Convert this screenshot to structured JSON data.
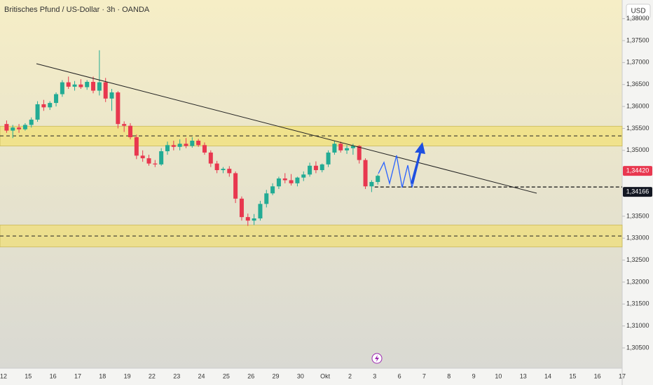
{
  "chart_data": {
    "type": "candlestick",
    "title": "Britisches Pfund / US-Dollar · 3h · OANDA",
    "currency": "USD",
    "up_color": "#22ab94",
    "down_color": "#e8374f",
    "categories": [
      "12",
      null,
      null,
      null,
      "15",
      null,
      null,
      null,
      "16",
      null,
      null,
      null,
      "17",
      null,
      null,
      null,
      "18",
      null,
      null,
      null,
      "19",
      null,
      null,
      null,
      "22",
      null,
      null,
      null,
      "23",
      null,
      null,
      null,
      "24",
      null,
      null,
      null,
      "25",
      null,
      null,
      null,
      "26",
      null,
      null,
      null,
      "29",
      null,
      null,
      null,
      "30",
      null,
      null,
      null,
      "Okt",
      null,
      null,
      null,
      "2",
      null,
      null,
      null,
      "3",
      null,
      null,
      null,
      "6",
      null,
      null,
      null,
      "7",
      null,
      null,
      null,
      "8",
      null,
      null,
      null,
      "9",
      null,
      null,
      null,
      "10",
      null,
      null,
      null,
      "13",
      null,
      null,
      null,
      "14",
      null,
      null,
      null,
      "15",
      null,
      null,
      null,
      "16",
      null,
      null,
      null,
      "17",
      null,
      null,
      null
    ],
    "open": [
      1.356,
      1.3545,
      1.3552,
      1.3548,
      1.3558,
      1.357,
      1.3605,
      1.3598,
      1.3608,
      1.3628,
      1.3655,
      1.3645,
      1.365,
      1.3644,
      1.3656,
      1.3636,
      1.3655,
      1.3618,
      1.3632,
      1.356,
      1.3556,
      1.353,
      1.3488,
      1.3482,
      1.347,
      1.3468,
      1.3498,
      1.3512,
      1.3508,
      1.3515,
      1.351,
      1.3522,
      1.3512,
      1.3495,
      1.347,
      1.3455,
      1.3458,
      1.3448,
      1.339,
      1.3348,
      1.334,
      1.3345,
      1.3378,
      1.3402,
      1.3418,
      1.3436,
      1.3432,
      1.3425,
      1.3438,
      1.3445,
      1.3465,
      1.3455,
      1.3468,
      1.3495,
      1.3515,
      1.35,
      1.3505,
      1.351,
      1.3478,
      1.3418,
      1.3428,
      null,
      null,
      null,
      null,
      null,
      null,
      null,
      null,
      null,
      null,
      null,
      null,
      null,
      null,
      null,
      null,
      null,
      null,
      null,
      null,
      null,
      null,
      null,
      null,
      null,
      null,
      null,
      null,
      null,
      null,
      null,
      null,
      null,
      null,
      null,
      null,
      null,
      null,
      null,
      null,
      null,
      null,
      null
    ],
    "high": [
      1.3568,
      1.3558,
      1.356,
      1.3562,
      1.3575,
      1.3612,
      1.3615,
      1.3612,
      1.3632,
      1.366,
      1.3668,
      1.3658,
      1.3662,
      1.366,
      1.3668,
      1.3728,
      1.3665,
      1.364,
      1.3635,
      1.3566,
      1.3562,
      1.3536,
      1.35,
      1.349,
      1.3478,
      1.3505,
      1.352,
      1.3522,
      1.3525,
      1.3528,
      1.353,
      1.3526,
      1.3518,
      1.35,
      1.3476,
      1.3462,
      1.3464,
      1.3452,
      1.3395,
      1.3356,
      1.3355,
      1.3385,
      1.341,
      1.3425,
      1.344,
      1.3448,
      1.3446,
      1.344,
      1.3452,
      1.3472,
      1.3475,
      1.347,
      1.35,
      1.3522,
      1.352,
      1.3512,
      1.3515,
      1.3512,
      1.3482,
      1.3432,
      1.3445,
      null,
      null,
      null,
      null,
      null,
      null,
      null,
      null,
      null,
      null,
      null,
      null,
      null,
      null,
      null,
      null,
      null,
      null,
      null,
      null,
      null,
      null,
      null,
      null,
      null,
      null,
      null,
      null,
      null,
      null,
      null,
      null,
      null,
      null,
      null,
      null,
      null,
      null,
      null,
      null,
      null,
      null,
      null
    ],
    "low": [
      1.354,
      1.3528,
      1.354,
      1.3545,
      1.3552,
      1.3565,
      1.359,
      1.3592,
      1.36,
      1.3622,
      1.364,
      1.3636,
      1.364,
      1.3638,
      1.363,
      1.3625,
      1.361,
      1.359,
      1.355,
      1.3542,
      1.3525,
      1.348,
      1.3474,
      1.3465,
      1.3462,
      1.3465,
      1.349,
      1.35,
      1.35,
      1.3505,
      1.3506,
      1.3508,
      1.349,
      1.3462,
      1.3448,
      1.3448,
      1.344,
      1.338,
      1.334,
      1.3328,
      1.333,
      1.334,
      1.337,
      1.3398,
      1.3412,
      1.3425,
      1.342,
      1.3418,
      1.343,
      1.344,
      1.3448,
      1.345,
      1.3462,
      1.349,
      1.3495,
      1.3492,
      1.349,
      1.347,
      1.3412,
      1.3405,
      1.3422,
      null,
      null,
      null,
      null,
      null,
      null,
      null,
      null,
      null,
      null,
      null,
      null,
      null,
      null,
      null,
      null,
      null,
      null,
      null,
      null,
      null,
      null,
      null,
      null,
      null,
      null,
      null,
      null,
      null,
      null,
      null,
      null,
      null,
      null,
      null,
      null,
      null,
      null,
      null,
      null,
      null,
      null,
      null
    ],
    "close": [
      1.3545,
      1.3552,
      1.3548,
      1.3558,
      1.357,
      1.3605,
      1.3598,
      1.3608,
      1.3628,
      1.3655,
      1.3645,
      1.365,
      1.3644,
      1.3656,
      1.3636,
      1.3655,
      1.3618,
      1.3632,
      1.356,
      1.3556,
      1.353,
      1.3488,
      1.3482,
      1.347,
      1.3468,
      1.3498,
      1.3512,
      1.3508,
      1.3515,
      1.351,
      1.3522,
      1.3512,
      1.3495,
      1.347,
      1.3455,
      1.3458,
      1.3448,
      1.339,
      1.3348,
      1.334,
      1.3345,
      1.3378,
      1.3402,
      1.3418,
      1.3436,
      1.3432,
      1.3425,
      1.3438,
      1.3445,
      1.3465,
      1.3455,
      1.3468,
      1.3495,
      1.3515,
      1.35,
      1.3505,
      1.351,
      1.3478,
      1.3418,
      1.3428,
      1.3442,
      null,
      null,
      null,
      null,
      null,
      null,
      null,
      null,
      null,
      null,
      null,
      null,
      null,
      null,
      null,
      null,
      null,
      null,
      null,
      null,
      null,
      null,
      null,
      null,
      null,
      null,
      null,
      null,
      null,
      null,
      null,
      null,
      null,
      null,
      null,
      null,
      null,
      null,
      null,
      null,
      null,
      null,
      null
    ],
    "ylim": [
      1.30038,
      1.38425
    ],
    "yticks": [
      {
        "value": 1.38,
        "label": "1,38000"
      },
      {
        "value": 1.375,
        "label": "1,37500"
      },
      {
        "value": 1.37,
        "label": "1,37000"
      },
      {
        "value": 1.365,
        "label": "1,36500"
      },
      {
        "value": 1.36,
        "label": "1,36000"
      },
      {
        "value": 1.355,
        "label": "1,35500"
      },
      {
        "value": 1.35,
        "label": "1,35000"
      },
      {
        "value": 1.335,
        "label": "1,33500"
      },
      {
        "value": 1.33,
        "label": "1,33000"
      },
      {
        "value": 1.325,
        "label": "1,32500"
      },
      {
        "value": 1.32,
        "label": "1,32000"
      },
      {
        "value": 1.315,
        "label": "1,31500"
      },
      {
        "value": 1.31,
        "label": "1,31000"
      },
      {
        "value": 1.305,
        "label": "1,30500"
      }
    ],
    "zones": [
      [
        1.351,
        1.3555
      ],
      [
        1.328,
        1.333
      ]
    ],
    "levels": [
      1.3533,
      1.3305
    ],
    "price_labels": [
      {
        "value": 1.3442,
        "label": "1,34420",
        "color": "#e8374f"
      },
      {
        "value": 1.34166,
        "label": "1,34166",
        "color": "#131722"
      }
    ]
  }
}
